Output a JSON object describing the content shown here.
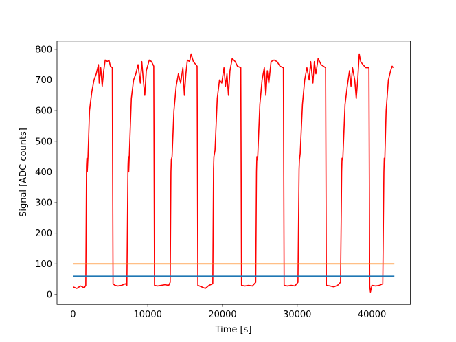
{
  "chart_data": {
    "type": "line",
    "xlabel": "Time [s]",
    "ylabel": "Signal [ADC counts]",
    "xlim": [
      -2150,
      45150
    ],
    "ylim": [
      -32,
      827
    ],
    "xticks": [
      0,
      10000,
      20000,
      30000,
      40000
    ],
    "yticks": [
      0,
      100,
      200,
      300,
      400,
      500,
      600,
      700,
      800
    ],
    "grid": false,
    "series": [
      {
        "color": "#ff0000",
        "x": [
          0,
          500,
          1000,
          1500,
          1700,
          1800,
          1850,
          1900,
          2000,
          2200,
          2500,
          2800,
          3100,
          3400,
          3500,
          3700,
          3900,
          4100,
          4300,
          4600,
          4800,
          5000,
          5250,
          5350,
          5600,
          6000,
          6500,
          7000,
          7200,
          7350,
          7400,
          7450,
          7550,
          7800,
          8100,
          8400,
          8700,
          9000,
          9200,
          9400,
          9600,
          9800,
          10200,
          10500,
          10800,
          10900,
          11300,
          11800,
          12300,
          12800,
          13000,
          13100,
          13150,
          13250,
          13500,
          13800,
          14100,
          14400,
          14700,
          14900,
          15100,
          15300,
          15600,
          15800,
          16100,
          16600,
          16700,
          17200,
          17700,
          18200,
          18700,
          18800,
          18850,
          19000,
          19300,
          19600,
          19900,
          20200,
          20400,
          20600,
          20800,
          21000,
          21300,
          21700,
          22000,
          22450,
          22550,
          23000,
          23500,
          24000,
          24450,
          24550,
          24600,
          24700,
          25000,
          25300,
          25600,
          25800,
          26000,
          26200,
          26500,
          26900,
          27300,
          27700,
          28150,
          28250,
          28700,
          29200,
          29700,
          30100,
          30250,
          30300,
          30400,
          30700,
          31000,
          31300,
          31600,
          31800,
          32100,
          32300,
          32500,
          32800,
          33200,
          33800,
          33900,
          34400,
          34900,
          35400,
          35800,
          35950,
          36000,
          36100,
          36400,
          36700,
          37000,
          37200,
          37400,
          37700,
          37900,
          38100,
          38300,
          38500,
          38800,
          39200,
          39600,
          39700,
          39800,
          40000,
          40500,
          41000,
          41450,
          41600,
          41650,
          41700,
          41900,
          42200,
          42500,
          42700,
          42850
        ],
        "values": [
          25,
          20,
          28,
          22,
          30,
          420,
          445,
          400,
          450,
          600,
          660,
          700,
          720,
          750,
          690,
          740,
          680,
          730,
          765,
          760,
          765,
          745,
          740,
          35,
          30,
          28,
          30,
          35,
          30,
          420,
          450,
          400,
          470,
          640,
          700,
          720,
          750,
          690,
          760,
          700,
          650,
          730,
          765,
          760,
          745,
          30,
          28,
          30,
          32,
          30,
          40,
          400,
          440,
          450,
          600,
          680,
          720,
          690,
          740,
          650,
          720,
          765,
          760,
          785,
          760,
          745,
          30,
          25,
          20,
          30,
          35,
          410,
          450,
          470,
          640,
          700,
          690,
          740,
          680,
          720,
          650,
          730,
          770,
          760,
          745,
          740,
          30,
          28,
          30,
          28,
          40,
          400,
          450,
          440,
          620,
          700,
          740,
          650,
          730,
          690,
          760,
          765,
          760,
          745,
          740,
          30,
          28,
          30,
          28,
          40,
          410,
          440,
          460,
          620,
          700,
          740,
          700,
          760,
          690,
          760,
          720,
          770,
          750,
          740,
          30,
          28,
          25,
          30,
          40,
          400,
          445,
          440,
          620,
          680,
          730,
          680,
          740,
          700,
          640,
          700,
          785,
          760,
          750,
          740,
          740,
          30,
          8,
          30,
          28,
          30,
          35,
          400,
          445,
          420,
          600,
          700,
          730,
          745,
          740
        ]
      },
      {
        "color": "#ff7f0e",
        "x": [
          0,
          43000
        ],
        "values": [
          100,
          100
        ]
      },
      {
        "color": "#1f77b4",
        "x": [
          0,
          43000
        ],
        "values": [
          60,
          60
        ]
      }
    ]
  }
}
